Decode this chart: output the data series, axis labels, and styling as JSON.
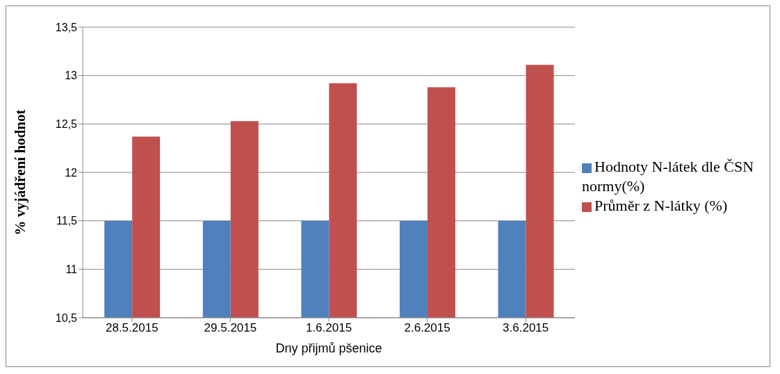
{
  "chart_data": {
    "type": "bar",
    "xlabel": "Dny přijmů pšenice",
    "ylabel": "% vyjádření hodnot",
    "categories": [
      "28.5.2015",
      "29.5.2015",
      "1.6.2015",
      "2.6.2015",
      "3.6.2015"
    ],
    "series": [
      {
        "name": "Hodnoty  N-látek dle ČSN normy(%)",
        "color": "#4f81bd",
        "values": [
          11.5,
          11.5,
          11.5,
          11.5,
          11.5
        ]
      },
      {
        "name": "Průměr z N-látky (%)",
        "color": "#c0504d",
        "values": [
          12.37,
          12.53,
          12.92,
          12.88,
          13.11
        ]
      }
    ],
    "ylim": [
      10.5,
      13.5
    ],
    "yticks": [
      {
        "value": 10.5,
        "label": "10,5"
      },
      {
        "value": 11,
        "label": "11"
      },
      {
        "value": 11.5,
        "label": "11,5"
      },
      {
        "value": 12,
        "label": "12"
      },
      {
        "value": 12.5,
        "label": "12,5"
      },
      {
        "value": 13,
        "label": "13"
      },
      {
        "value": 13.5,
        "label": "13,5"
      }
    ],
    "grid": "y",
    "legend": "right"
  }
}
